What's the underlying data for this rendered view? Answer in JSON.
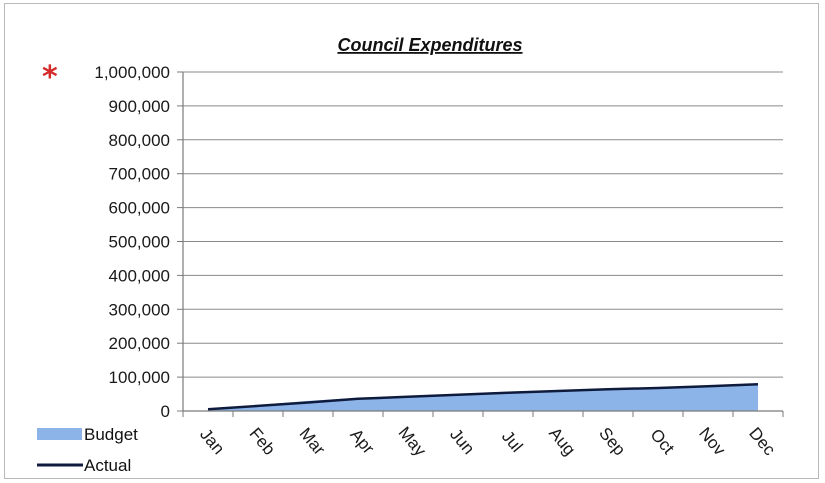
{
  "annotation": {
    "symbol": "*",
    "color": "#d42a2a"
  },
  "chart_data": {
    "type": "area",
    "title": "Council Expenditures",
    "xlabel": "",
    "ylabel": "",
    "categories": [
      "Jan",
      "Feb",
      "Mar",
      "Apr",
      "May",
      "Jun",
      "Jul",
      "Aug",
      "Sep",
      "Oct",
      "Nov",
      "Dec"
    ],
    "ylim": [
      0,
      1000000
    ],
    "yticks": [
      "0",
      "100,000",
      "200,000",
      "300,000",
      "400,000",
      "500,000",
      "600,000",
      "700,000",
      "800,000",
      "900,000",
      "1,000,000"
    ],
    "grid": true,
    "legend_position": "bottom-left",
    "series": [
      {
        "name": "Budget",
        "type": "area",
        "color": "#8db4e8",
        "values": [
          5000,
          18000,
          30000,
          39000,
          45000,
          51000,
          57000,
          62000,
          66000,
          70000,
          75000,
          80000
        ]
      },
      {
        "name": "Actual",
        "type": "line",
        "color": "#0f1b3d",
        "values": [
          5000,
          15000,
          25000,
          36000,
          42000,
          48000,
          54000,
          59000,
          64000,
          68000,
          73000,
          79000
        ]
      }
    ]
  }
}
